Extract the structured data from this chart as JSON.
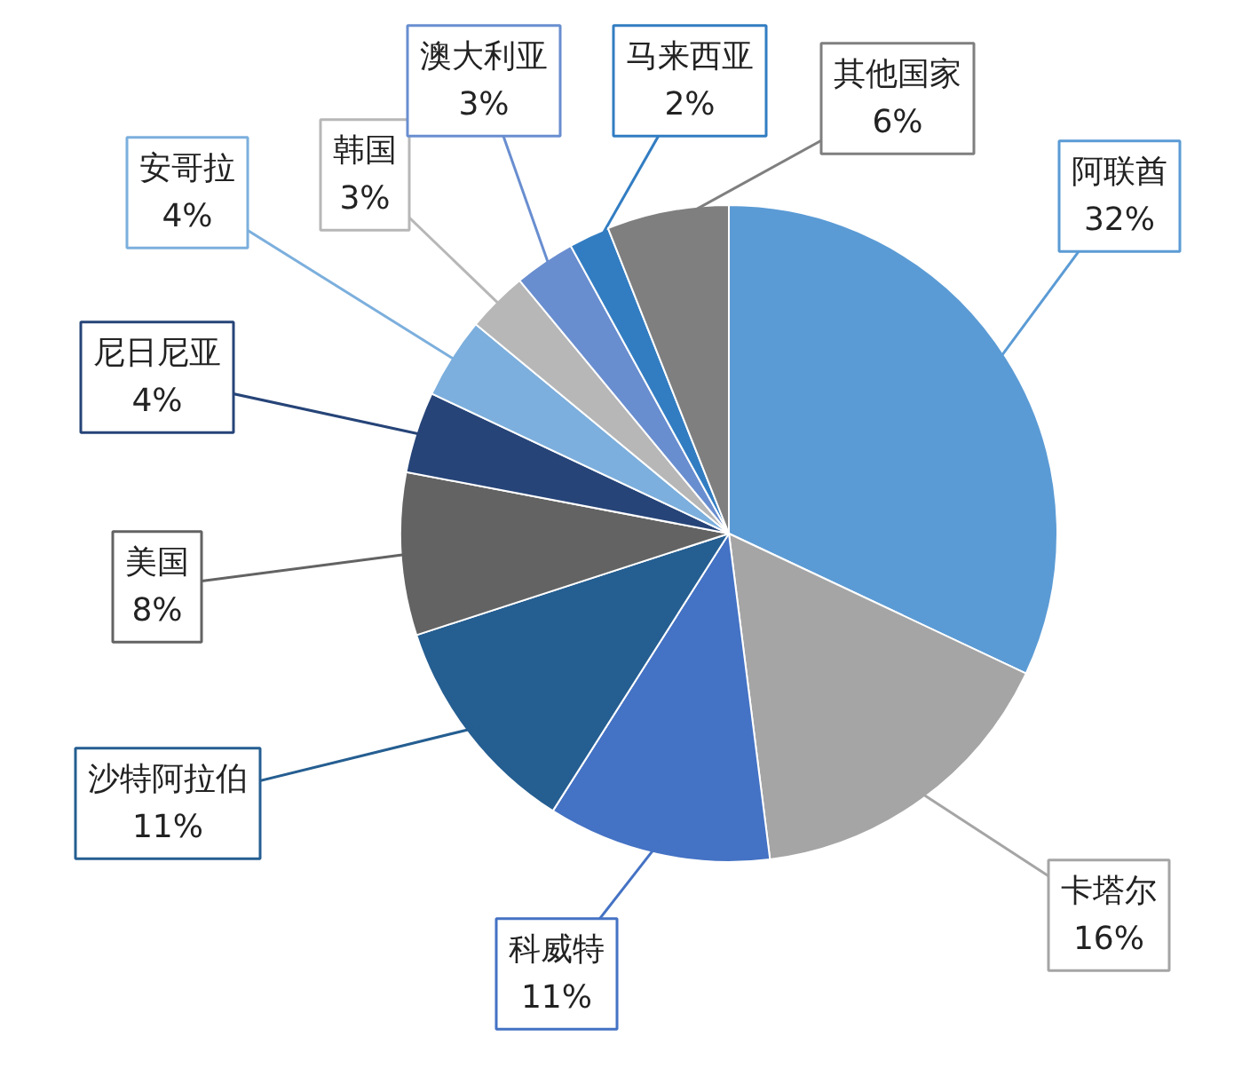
{
  "chart_data": {
    "type": "pie",
    "categories": [
      "阿联酋",
      "卡塔尔",
      "科威特",
      "沙特阿拉伯",
      "美国",
      "尼日尼亚",
      "安哥拉",
      "韩国",
      "澳大利亚",
      "马来西亚",
      "其他国家"
    ],
    "values": [
      32,
      16,
      11,
      11,
      8,
      4,
      4,
      3,
      3,
      2,
      6
    ],
    "colors": [
      "#5b9bd5",
      "#a5a5a5",
      "#4472c4",
      "#255e91",
      "#636363",
      "#264478",
      "#7cafdd",
      "#b7b7b7",
      "#698ed0",
      "#327dc2",
      "#7f7f7f"
    ],
    "value_labels": [
      "32%",
      "16%",
      "11%",
      "11%",
      "8%",
      "4%",
      "4%",
      "3%",
      "3%",
      "2%",
      "6%"
    ]
  }
}
